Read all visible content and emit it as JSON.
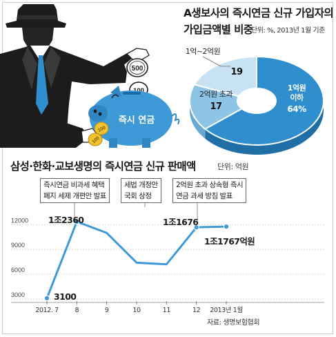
{
  "pie_header": {
    "title_line1": "A생보사의 즉시연금 신규 가입자의",
    "title_line2": "가입금액별 비중",
    "unit_note": "단위: %, 2013년 1월 기준"
  },
  "illustration": {
    "coin_large": "500",
    "coin_small": "100",
    "piggy_bank_label": "즉시 연금",
    "coin_side_1": "100",
    "coin_side_2": "100"
  },
  "line_header": {
    "title": "삼성·한화·교보생명의 즉시연금 신규 판매액",
    "unit_note": "단위: 억원"
  },
  "callouts": [
    {
      "line1": "즉시연금 비과세 혜택",
      "line2": "폐지 세제 개편안 발표"
    },
    {
      "line1": "세법 개정안",
      "line2": "국회 상정"
    },
    {
      "line1": "2억원 초과 상속형 즉시",
      "line2": "연금 과세 방침 발표"
    }
  ],
  "data_labels": [
    "1조2360",
    "3100",
    "1조1676",
    "1조1767억원"
  ],
  "source": "자료: 생명보험협회",
  "colors": {
    "pie_dark": "#2f8fce",
    "pie_mid": "#8ec5e6",
    "pie_light": "#c7e2f3",
    "line": "#3d9ad6",
    "suit": "#1c1c1c"
  },
  "chart_data": [
    {
      "type": "pie",
      "title": "A생보사의 즉시연금 신규 가입자의 가입금액별 비중",
      "unit": "%",
      "slices": [
        {
          "name": "1억원 이하",
          "label_line1": "1억원",
          "label_line2": "이하",
          "value": 64,
          "value_label": "64%"
        },
        {
          "name": "2억원 초과",
          "label": "2억원 초과",
          "value": 17,
          "value_label": "17"
        },
        {
          "name": "1억~2억원",
          "label": "1억~2억원",
          "value": 19,
          "value_label": "19"
        }
      ]
    },
    {
      "type": "line",
      "title": "삼성·한화·교보생명의 즉시연금 신규 판매액",
      "ylabel": "단위: 억원",
      "x": [
        "2012. 7",
        "8",
        "9",
        "10",
        "11",
        "12",
        "2013년 1월"
      ],
      "ylim": [
        2500,
        13000
      ],
      "yticks": [
        3000,
        6000,
        9000,
        12000
      ],
      "ytick_labels": [
        "3000",
        "6000",
        "9000",
        "12000"
      ],
      "grid": true,
      "series": [
        {
          "values": [
            3100,
            12360,
            11000,
            7400,
            7200,
            11676,
            11767
          ]
        }
      ]
    }
  ]
}
